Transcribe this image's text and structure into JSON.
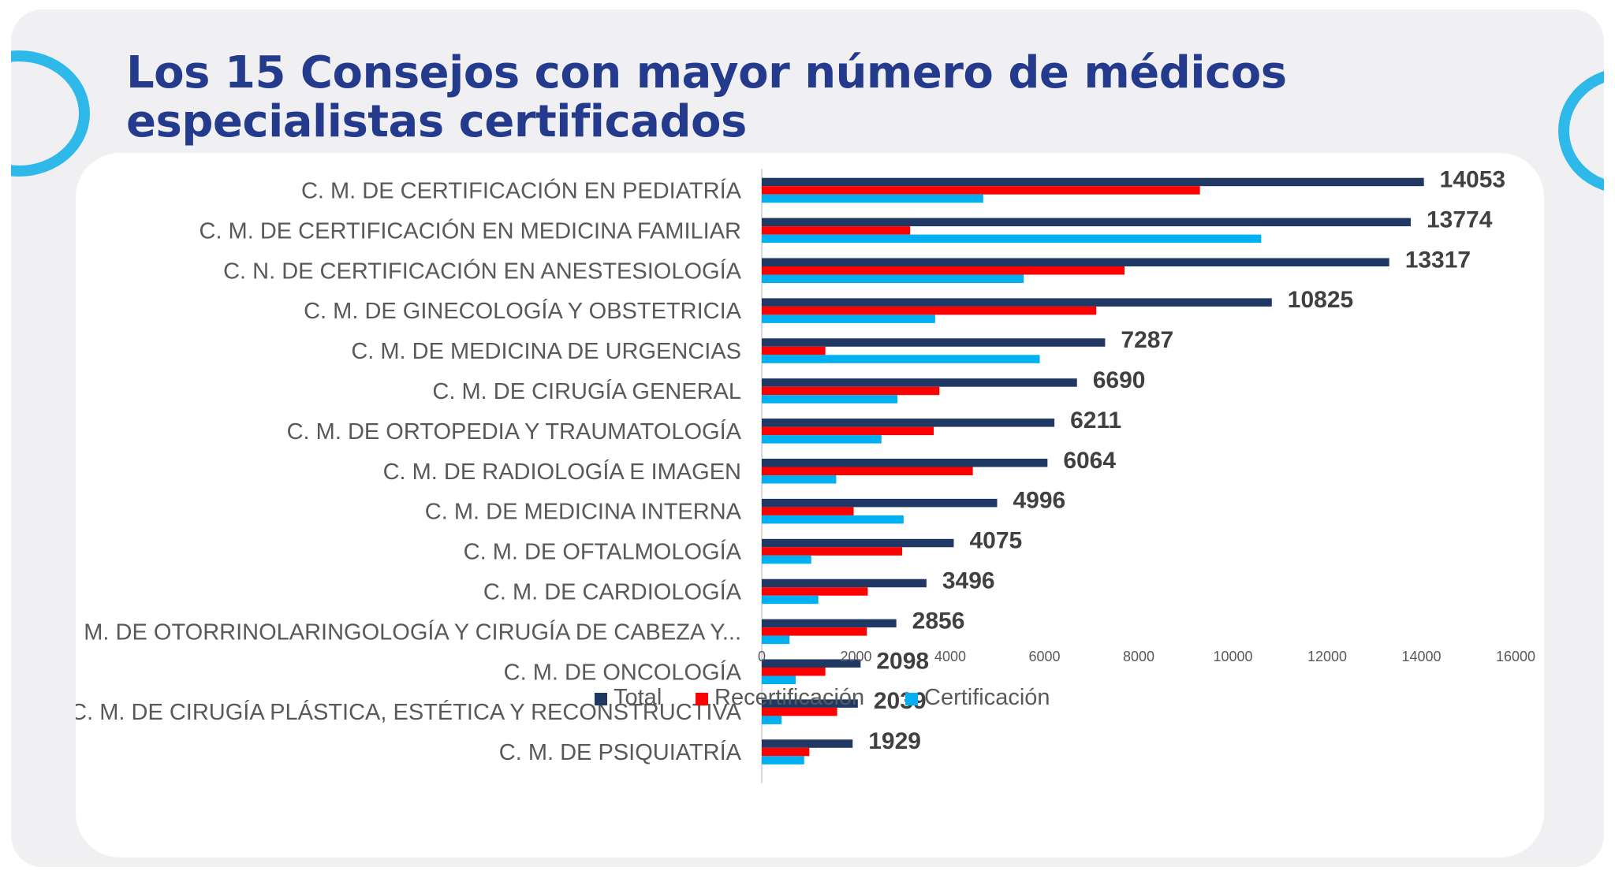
{
  "title": {
    "line1": "Los 15 Consejos con mayor número de médicos",
    "line2": "especialistas certificados"
  },
  "colors": {
    "total": "#1f3864",
    "recertificacion": "#ff0000",
    "certificacion": "#00b0f0",
    "accent_ring": "#2fb8ea",
    "title": "#243a8c"
  },
  "chart_data": {
    "type": "bar",
    "orientation": "horizontal",
    "categories": [
      "C. M. DE CERTIFICACIÓN EN PEDIATRÍA",
      "C. M. DE CERTIFICACIÓN EN MEDICINA FAMILIAR",
      "C. N. DE CERTIFICACIÓN EN ANESTESIOLOGÍA",
      "C. M. DE GINECOLOGÍA Y OBSTETRICIA",
      "C. M. DE MEDICINA DE URGENCIAS",
      "C. M. DE CIRUGÍA GENERAL",
      "C. M. DE ORTOPEDIA Y TRAUMATOLOGÍA",
      "C. M. DE RADIOLOGÍA E IMAGEN",
      "C. M. DE MEDICINA INTERNA",
      "C. M. DE OFTALMOLOGÍA",
      "C. M. DE CARDIOLOGÍA",
      "C. M. DE OTORRINOLARINGOLOGÍA Y CIRUGÍA DE CABEZA Y...",
      "C. M. DE ONCOLOGÍA",
      "C. M. DE CIRUGÍA PLÁSTICA, ESTÉTICA Y RECONSTRUCTIVA",
      "C. M. DE PSIQUIATRÍA"
    ],
    "series": [
      {
        "name": "Total",
        "color": "#1f3864",
        "values": [
          14053,
          13774,
          13317,
          10825,
          7287,
          6690,
          6211,
          6064,
          4996,
          4075,
          3496,
          2856,
          2098,
          2039,
          1929
        ],
        "labels": [
          "14053",
          "13774",
          "13317",
          "10825",
          "7287",
          "6690",
          "6211",
          "6064",
          "4996",
          "4075",
          "3496",
          "2856",
          "2098",
          "2039",
          "1929"
        ]
      },
      {
        "name": "Recertificación",
        "color": "#ff0000",
        "values": [
          9300,
          3150,
          7700,
          7100,
          1350,
          3770,
          3650,
          4480,
          1950,
          2980,
          2250,
          2230,
          1350,
          1600,
          1010
        ]
      },
      {
        "name": "Certificación",
        "color": "#00b0f0",
        "values": [
          4700,
          10600,
          5560,
          3680,
          5900,
          2880,
          2540,
          1580,
          3010,
          1050,
          1200,
          590,
          720,
          420,
          900
        ]
      }
    ],
    "xlim": [
      0,
      16000
    ],
    "xticks": [
      "0",
      "2000",
      "4000",
      "6000",
      "8000",
      "10000",
      "12000",
      "14000",
      "16000"
    ],
    "legend_position": "bottom",
    "grid": false
  }
}
